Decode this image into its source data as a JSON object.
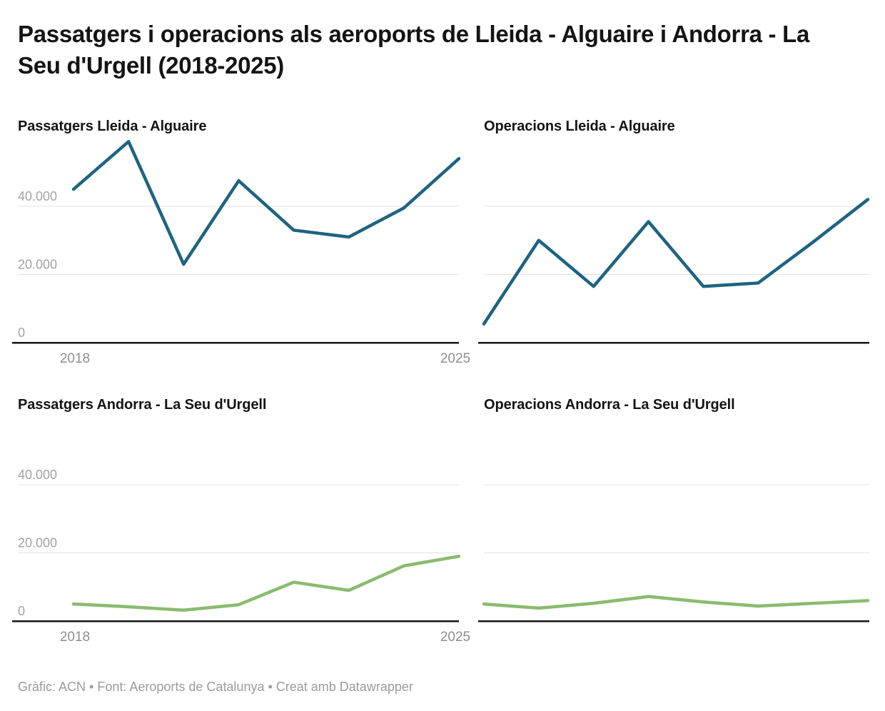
{
  "header": {
    "title": "Passatgers i operacions als aeroports de Lleida - Alguaire i Andorra - La Seu d'Urgell (2018-2025)"
  },
  "footer": {
    "credit": "Gràfic: ACN • Font: Aeroports de Catalunya • Creat amb Datawrapper"
  },
  "colors": {
    "teal_line": "#1d6480",
    "green_line": "#8abb6e",
    "gridline": "#e2e2e2",
    "baseline": "#141414",
    "y_tick_text": "#a2a2a2",
    "x_tick_text": "#8e8e8e",
    "title_text": "#141414",
    "credit_text": "#9b9b9b"
  },
  "axis": {
    "y_ticks": [
      {
        "value": 40000,
        "label": "40.000"
      },
      {
        "value": 20000,
        "label": "20.000"
      },
      {
        "value": 0,
        "label": "0"
      }
    ],
    "x_first_label": "2018",
    "x_last_label": "2025",
    "ylim": [
      0,
      60000
    ],
    "grid": "horizontal-only"
  },
  "chart_data": [
    {
      "type": "line",
      "title": "Passatgers Lleida - Alguaire",
      "color": "#1d6480",
      "x": [
        2018,
        2019,
        2020,
        2021,
        2022,
        2023,
        2024,
        2025
      ],
      "values": [
        45000,
        59000,
        23000,
        47500,
        33000,
        31000,
        39500,
        54000
      ],
      "xlabel": "",
      "ylabel": "",
      "ylim": [
        0,
        60000
      ],
      "show_y_axis_labels": true,
      "show_x_axis_labels": true,
      "legend": "none"
    },
    {
      "type": "line",
      "title": "Operacions Lleida - Alguaire",
      "color": "#1d6480",
      "x": [
        2018,
        2019,
        2020,
        2021,
        2022,
        2023,
        2024,
        2025
      ],
      "values": [
        5500,
        30000,
        16500,
        35500,
        16500,
        17500,
        29500,
        42000
      ],
      "xlabel": "",
      "ylabel": "",
      "ylim": [
        0,
        60000
      ],
      "show_y_axis_labels": false,
      "show_x_axis_labels": false,
      "legend": "none"
    },
    {
      "type": "line",
      "title": "Passatgers Andorra - La Seu d'Urgell",
      "color": "#8abb6e",
      "x": [
        2018,
        2019,
        2020,
        2021,
        2022,
        2023,
        2024,
        2025
      ],
      "values": [
        5000,
        4200,
        3200,
        4800,
        11400,
        9000,
        16200,
        19000
      ],
      "xlabel": "",
      "ylabel": "",
      "ylim": [
        0,
        60000
      ],
      "show_y_axis_labels": true,
      "show_x_axis_labels": true,
      "legend": "none"
    },
    {
      "type": "line",
      "title": "Operacions Andorra - La Seu d'Urgell",
      "color": "#8abb6e",
      "x": [
        2018,
        2019,
        2020,
        2021,
        2022,
        2023,
        2024,
        2025
      ],
      "values": [
        5000,
        3800,
        5200,
        7200,
        5600,
        4400,
        5200,
        6000
      ],
      "xlabel": "",
      "ylabel": "",
      "ylim": [
        0,
        60000
      ],
      "show_y_axis_labels": false,
      "show_x_axis_labels": false,
      "legend": "none"
    }
  ]
}
